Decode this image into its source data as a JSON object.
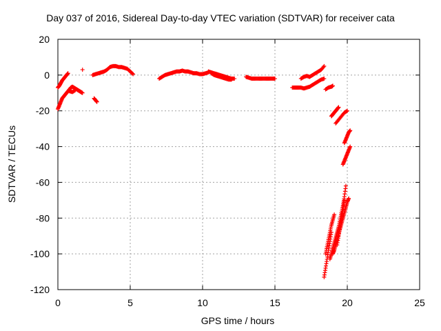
{
  "chart_data": {
    "type": "scatter",
    "title": "Day 037 of 2016, Sidereal Day-to-day VTEC variation (SDTVAR) for receiver cata",
    "xlabel": "GPS time / hours",
    "ylabel": "SDTVAR / TECUs",
    "xlim": [
      0,
      25
    ],
    "ylim": [
      -120,
      20
    ],
    "xticks": [
      "0",
      "5",
      "10",
      "15",
      "20",
      "25"
    ],
    "yticks": [
      "20",
      "0",
      "-20",
      "-40",
      "-60",
      "-80",
      "-100",
      "-120"
    ],
    "grid": true,
    "marker": "plus",
    "color": "#ff0000",
    "series": [
      {
        "segments": [
          {
            "x": [
              0.0,
              0.1,
              0.2,
              0.3,
              0.4,
              0.5,
              0.6,
              0.7
            ],
            "y": [
              -7,
              -6,
              -4.5,
              -3,
              -2,
              -1,
              0,
              1
            ]
          },
          {
            "x": [
              0.0,
              0.1,
              0.2,
              0.3,
              0.4,
              0.5,
              0.6,
              0.7,
              0.8,
              0.9,
              1.0,
              1.1,
              1.2,
              1.3,
              1.4,
              1.5,
              1.6,
              1.7
            ],
            "y": [
              -19,
              -17,
              -15,
              -13,
              -12,
              -11,
              -10,
              -9,
              -8,
              -7,
              -6.5,
              -7,
              -7.5,
              -8,
              -8.5,
              -9,
              -9.5,
              -10
            ]
          },
          {
            "x": [
              0.8,
              1.0,
              1.2
            ],
            "y": [
              -9,
              -9.5,
              -8.5
            ]
          },
          {
            "x": [
              1.7
            ],
            "y": [
              3
            ]
          },
          {
            "x": [
              2.5,
              2.6,
              2.7
            ],
            "y": [
              -13,
              -14,
              -15
            ]
          },
          {
            "x": [
              2.4,
              2.6,
              2.8,
              3.0,
              3.2,
              3.4,
              3.6,
              3.8,
              4.0,
              4.2,
              4.4,
              4.6,
              4.8,
              5.0,
              5.2
            ],
            "y": [
              0,
              0.5,
              1,
              1.5,
              2,
              3,
              4.5,
              5,
              5,
              4.5,
              4.5,
              4,
              3.5,
              2,
              0.5
            ]
          },
          {
            "x": [
              7.0,
              7.2,
              7.4,
              7.6,
              7.8,
              8.0,
              8.2,
              8.4,
              8.6,
              8.8,
              9.0,
              9.2,
              9.4,
              9.6,
              9.8,
              10.0,
              10.2,
              10.4
            ],
            "y": [
              -2,
              -1,
              0,
              0.5,
              1,
              1.5,
              2,
              2,
              2.5,
              2,
              2,
              1.5,
              1,
              1,
              0.5,
              0.5,
              1,
              1.5
            ]
          },
          {
            "x": [
              10.4,
              10.6,
              10.8,
              11.0,
              11.2,
              11.4,
              11.6,
              11.8,
              12.0,
              12.2
            ],
            "y": [
              2,
              1.5,
              1,
              0.5,
              0,
              -0.5,
              -1,
              -1.5,
              -2,
              -2
            ]
          },
          {
            "x": [
              10.6,
              10.8,
              11.0,
              11.2,
              11.4,
              11.6,
              11.8,
              12.0
            ],
            "y": [
              1,
              0,
              -0.5,
              -1,
              -1.5,
              -2,
              -2.5,
              -2.5
            ]
          },
          {
            "x": [
              13.0,
              13.2,
              13.4,
              13.6,
              13.8,
              14.0,
              14.2,
              14.4,
              14.6,
              14.8,
              15.0
            ],
            "y": [
              -1,
              -1.5,
              -2,
              -2,
              -2,
              -2,
              -2,
              -2,
              -2,
              -2,
              -2
            ]
          },
          {
            "x": [
              16.2,
              16.4,
              16.6,
              16.8,
              17.0,
              17.2,
              17.4,
              17.6,
              17.8,
              18.0,
              18.2,
              18.4
            ],
            "y": [
              -7,
              -7,
              -7,
              -7,
              -7.5,
              -7,
              -6.5,
              -5.5,
              -4.5,
              -3.5,
              -2.5,
              -2
            ]
          },
          {
            "x": [
              16.8,
              17.0,
              17.2,
              17.4,
              17.6,
              17.8,
              18.0,
              18.2,
              18.4
            ],
            "y": [
              -2,
              -1,
              -0.5,
              -1,
              0,
              1,
              2,
              3,
              5
            ]
          },
          {
            "x": [
              18.5,
              18.7,
              18.9,
              19.0
            ],
            "y": [
              -8,
              -7,
              -6.5,
              -6
            ]
          },
          {
            "x": [
              18.9,
              19.0,
              19.1,
              19.2,
              19.3,
              19.4
            ],
            "y": [
              -23,
              -22,
              -21,
              -20,
              -19,
              -18
            ]
          },
          {
            "x": [
              19.2,
              19.4,
              19.6,
              19.8,
              20.0
            ],
            "y": [
              -27,
              -25,
              -23,
              -21,
              -20
            ]
          },
          {
            "x": [
              19.8,
              19.9,
              20.0,
              20.1,
              20.2
            ],
            "y": [
              -38,
              -36,
              -34,
              -32,
              -31
            ]
          },
          {
            "x": [
              19.7,
              19.8,
              19.9,
              20.0,
              20.1,
              20.2
            ],
            "y": [
              -50,
              -48,
              -46,
              -44,
              -42,
              -40
            ]
          },
          {
            "x": [
              18.4,
              18.5,
              18.6,
              18.7,
              18.8,
              18.9
            ],
            "y": [
              -113,
              -108,
              -103,
              -98,
              -93,
              -88
            ]
          },
          {
            "x": [
              18.5,
              18.6,
              18.7,
              18.8,
              18.9,
              19.0,
              19.1
            ],
            "y": [
              -100,
              -96,
              -92,
              -88,
              -84,
              -81,
              -78
            ]
          },
          {
            "x": [
              18.8,
              18.9,
              19.0,
              19.1,
              19.2,
              19.3,
              19.4,
              19.5,
              19.6,
              19.7,
              19.8,
              19.9
            ],
            "y": [
              -103,
              -100,
              -97,
              -94,
              -91,
              -88,
              -85,
              -81,
              -77,
              -73,
              -68,
              -62
            ]
          },
          {
            "x": [
              19.0,
              19.1,
              19.2,
              19.3,
              19.4,
              19.5,
              19.6,
              19.7,
              19.8,
              19.9,
              20.0,
              20.1
            ],
            "y": [
              -100,
              -98,
              -95,
              -92,
              -89,
              -86,
              -83,
              -80,
              -77,
              -74,
              -71,
              -69
            ]
          },
          {
            "x": [
              19.3,
              19.4,
              19.5,
              19.6,
              19.7,
              19.8
            ],
            "y": [
              -95,
              -90,
              -85,
              -80,
              -75,
              -70
            ]
          }
        ]
      }
    ]
  }
}
